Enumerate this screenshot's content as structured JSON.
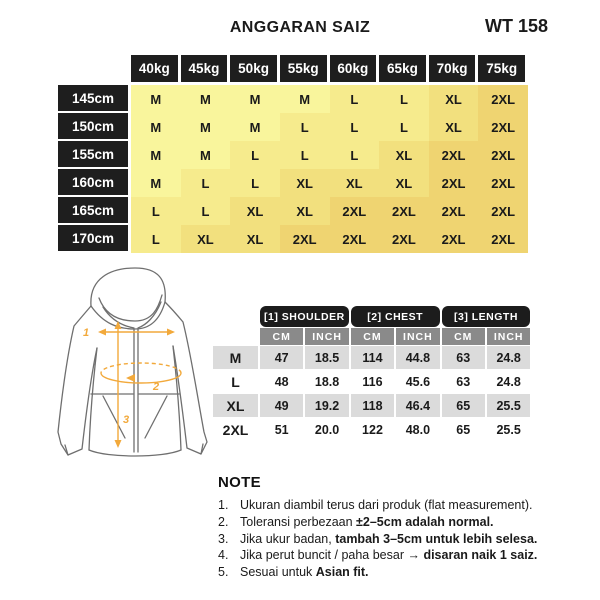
{
  "title": "ANGGARAN SAIZ",
  "code": "WT 158",
  "size_matrix": {
    "weight_headers": [
      "40kg",
      "45kg",
      "50kg",
      "55kg",
      "60kg",
      "65kg",
      "70kg",
      "75kg"
    ],
    "height_rows": [
      {
        "height": "145cm",
        "sizes": [
          "M",
          "M",
          "M",
          "M",
          "L",
          "L",
          "XL",
          "2XL"
        ]
      },
      {
        "height": "150cm",
        "sizes": [
          "M",
          "M",
          "M",
          "L",
          "L",
          "L",
          "XL",
          "2XL"
        ]
      },
      {
        "height": "155cm",
        "sizes": [
          "M",
          "M",
          "L",
          "L",
          "L",
          "XL",
          "2XL",
          "2XL"
        ]
      },
      {
        "height": "160cm",
        "sizes": [
          "M",
          "L",
          "L",
          "XL",
          "XL",
          "XL",
          "2XL",
          "2XL"
        ]
      },
      {
        "height": "165cm",
        "sizes": [
          "L",
          "L",
          "XL",
          "XL",
          "2XL",
          "2XL",
          "2XL",
          "2XL"
        ]
      },
      {
        "height": "170cm",
        "sizes": [
          "L",
          "XL",
          "XL",
          "2XL",
          "2XL",
          "2XL",
          "2XL",
          "2XL"
        ]
      }
    ],
    "size_colors": {
      "M": "#F9F59C",
      "L": "#F6EB8D",
      "XL": "#F2E07E",
      "2XL": "#EFD471"
    },
    "header_bg": "#1E1E1E"
  },
  "diagram": {
    "labels": [
      "1",
      "2",
      "3"
    ],
    "arrow_color": "#F2A93B",
    "line_color": "#6F6F6F"
  },
  "measurement_table": {
    "groups": [
      {
        "label": "[1] SHOULDER"
      },
      {
        "label": "[2] CHEST"
      },
      {
        "label": "[3] LENGTH"
      }
    ],
    "unit_headers": [
      "CM",
      "INCH",
      "CM",
      "INCH",
      "CM",
      "INCH"
    ],
    "rows": [
      {
        "size": "M",
        "values": [
          "47",
          "18.5",
          "114",
          "44.8",
          "63",
          "24.8"
        ]
      },
      {
        "size": "L",
        "values": [
          "48",
          "18.8",
          "116",
          "45.6",
          "63",
          "24.8"
        ]
      },
      {
        "size": "XL",
        "values": [
          "49",
          "19.2",
          "118",
          "46.4",
          "65",
          "25.5"
        ]
      },
      {
        "size": "2XL",
        "values": [
          "51",
          "20.0",
          "122",
          "48.0",
          "65",
          "25.5"
        ]
      }
    ],
    "stripe_color": "#DBDBDB"
  },
  "notes": {
    "heading": "NOTE",
    "items": [
      {
        "num": "1.",
        "parts": [
          {
            "text": "Ukuran diambil terus dari produk (flat measurement).",
            "bold": false
          }
        ]
      },
      {
        "num": "2.",
        "parts": [
          {
            "text": "Toleransi perbezaan ",
            "bold": false
          },
          {
            "text": "±2–5cm adalah normal.",
            "bold": true
          }
        ]
      },
      {
        "num": "3.",
        "parts": [
          {
            "text": "Jika ukur badan, ",
            "bold": false
          },
          {
            "text": "tambah 3–5cm untuk lebih selesa.",
            "bold": true
          }
        ]
      },
      {
        "num": "4.",
        "parts": [
          {
            "text": "Jika perut buncit / paha besar → ",
            "bold": false
          },
          {
            "text": "disaran naik 1 saiz.",
            "bold": true
          }
        ]
      },
      {
        "num": "5.",
        "parts": [
          {
            "text": "Sesuai untuk ",
            "bold": false
          },
          {
            "text": "Asian fit.",
            "bold": true
          }
        ]
      }
    ]
  }
}
